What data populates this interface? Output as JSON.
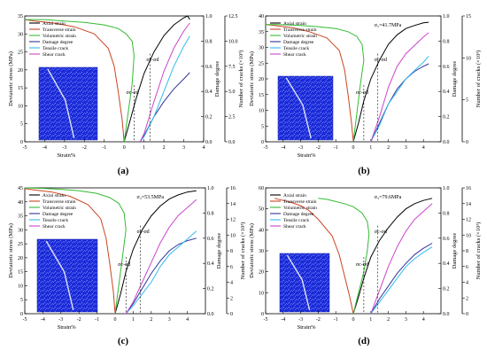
{
  "chart_data": [
    {
      "type": "line",
      "label": "(a)",
      "sigma3_label": "",
      "xlabel": "Strain%",
      "ylabel_left": "Deviatoric stress (MPa)",
      "ylabel_right1": "Damage degree",
      "ylabel_right2": "Number of cracks (×10³)",
      "xlim": [
        -5,
        4
      ],
      "xticks": [
        -5,
        -4,
        -3,
        -2,
        -1,
        0,
        1,
        2,
        3,
        4
      ],
      "ylim_left": [
        0,
        35
      ],
      "yticks_left": [
        0,
        5,
        10,
        15,
        20,
        25,
        30,
        35
      ],
      "ylim_damage": [
        0,
        1.0
      ],
      "yticks_damage": [
        0.0,
        0.2,
        0.4,
        0.6,
        0.8,
        1.0
      ],
      "ylim_cracks": [
        0,
        12.5
      ],
      "yticks_cracks": [
        0.0,
        2.5,
        5.0,
        7.5,
        10.0,
        12.5
      ],
      "annotations": [
        "σc-σd",
        "σc-σd"
      ],
      "legend_position": "top-left",
      "series": [
        {
          "name": "Axial strain",
          "color": "#000000",
          "axis": "left",
          "x": [
            0,
            0.3,
            0.6,
            1.0,
            1.5,
            2.0,
            2.5,
            3.0,
            3.2,
            3.3
          ],
          "y": [
            0,
            6,
            12,
            19,
            25,
            29.5,
            32.5,
            34.5,
            35,
            34
          ]
        },
        {
          "name": "Transverse strain",
          "color": "#cc4422",
          "axis": "left",
          "x": [
            0,
            -0.1,
            -0.3,
            -0.5,
            -0.8,
            -1.5,
            -2.5,
            -3.5,
            -4.5,
            -5
          ],
          "y": [
            0,
            6,
            14,
            21,
            26,
            30,
            32,
            33,
            33.6,
            34
          ]
        },
        {
          "name": "Volumetric strain",
          "color": "#33bb33",
          "axis": "left",
          "x": [
            0,
            0.2,
            0.4,
            0.5,
            0.4,
            0.1,
            -0.3,
            -1.0,
            -2.0,
            -3.0,
            -4.0,
            -5.0
          ],
          "y": [
            0,
            8,
            16,
            24,
            28,
            30,
            31.5,
            32.5,
            33.2,
            33.6,
            34,
            34
          ]
        },
        {
          "name": "Damage degree",
          "color": "#333399",
          "axis": "damage",
          "x": [
            0.8,
            1.0,
            1.5,
            2.0,
            2.5,
            3.0,
            3.3
          ],
          "y": [
            0,
            0.05,
            0.2,
            0.32,
            0.42,
            0.5,
            0.55
          ]
        },
        {
          "name": "Tensile crack",
          "color": "#33bbee",
          "axis": "cracks",
          "x": [
            0.8,
            1.0,
            1.5,
            2.0,
            2.5,
            3.0,
            3.3
          ],
          "y": [
            0,
            0.5,
            2.5,
            5.0,
            7.5,
            9.5,
            10.5
          ]
        },
        {
          "name": "Shear crack",
          "color": "#cc44cc",
          "axis": "cracks",
          "x": [
            0.8,
            1.0,
            1.5,
            2.0,
            2.5,
            3.0,
            3.3
          ],
          "y": [
            0,
            0.8,
            4.0,
            7.0,
            9.3,
            11.0,
            11.8
          ]
        }
      ]
    },
    {
      "type": "line",
      "label": "(b)",
      "sigma3_label": "σ₃=41.7MPa",
      "xlabel": "Strain%",
      "ylabel_left": "Deviatoric stress (MPa)",
      "ylabel_right1": "Damage degree",
      "ylabel_right2": "Number of cracks (×10³)",
      "xlim": [
        -5,
        5
      ],
      "xticks": [
        -5,
        -4,
        -3,
        -2,
        -1,
        0,
        1,
        2,
        3,
        4
      ],
      "ylim_left": [
        0,
        40
      ],
      "yticks_left": [
        0,
        5,
        10,
        15,
        20,
        25,
        30,
        35,
        40
      ],
      "ylim_damage": [
        0,
        1.0
      ],
      "yticks_damage": [
        0.0,
        0.2,
        0.4,
        0.6,
        0.8,
        1.0
      ],
      "ylim_cracks": [
        0,
        15
      ],
      "yticks_cracks": [
        0,
        5,
        10,
        15
      ],
      "annotations": [
        "σc-σd",
        "σc-σd"
      ],
      "legend_position": "top-left",
      "series": [
        {
          "name": "Axial strain",
          "color": "#000000",
          "axis": "left",
          "x": [
            0,
            0.3,
            0.6,
            1.0,
            1.5,
            2.0,
            2.5,
            3.0,
            3.5,
            4.0,
            4.3
          ],
          "y": [
            0,
            6,
            13,
            20,
            26,
            31,
            34,
            36,
            37,
            37.8,
            38
          ]
        },
        {
          "name": "Transverse strain",
          "color": "#cc4422",
          "axis": "left",
          "x": [
            0,
            -0.1,
            -0.3,
            -0.5,
            -0.8,
            -1.5,
            -2.5,
            -3.5,
            -4.5,
            -5
          ],
          "y": [
            0,
            6,
            15,
            23,
            29,
            33,
            35,
            36.3,
            37,
            37.3
          ]
        },
        {
          "name": "Volumetric strain",
          "color": "#33bb33",
          "axis": "left",
          "x": [
            0,
            0.2,
            0.4,
            0.6,
            0.5,
            0.2,
            -0.3,
            -1.0,
            -2.0,
            -3.0,
            -4.0,
            -5.0
          ],
          "y": [
            0,
            9,
            18,
            26,
            31,
            33.5,
            35,
            36,
            36.6,
            37,
            37.2,
            37.3
          ]
        },
        {
          "name": "Damage degree",
          "color": "#333399",
          "axis": "damage",
          "x": [
            1.0,
            1.5,
            2.0,
            2.5,
            3.0,
            3.5,
            4.0,
            4.3
          ],
          "y": [
            0,
            0.15,
            0.3,
            0.42,
            0.5,
            0.56,
            0.6,
            0.62
          ]
        },
        {
          "name": "Tensile crack",
          "color": "#33bbee",
          "axis": "cracks",
          "x": [
            1.0,
            1.5,
            2.0,
            2.5,
            3.0,
            3.5,
            4.0,
            4.3
          ],
          "y": [
            0,
            2.0,
            4.5,
            6.0,
            7.5,
            8.5,
            9.5,
            10.2
          ]
        },
        {
          "name": "Shear crack",
          "color": "#cc44cc",
          "axis": "cracks",
          "x": [
            1.0,
            1.5,
            2.0,
            2.5,
            3.0,
            3.5,
            4.0,
            4.3
          ],
          "y": [
            0,
            3.0,
            6.5,
            9.0,
            10.5,
            11.5,
            12.5,
            13.0
          ]
        }
      ]
    },
    {
      "type": "line",
      "label": "(c)",
      "sigma3_label": "σ₃=53.5MPa",
      "xlabel": "Strain%",
      "ylabel_left": "Deviatoric stress (MPa)",
      "ylabel_right1": "Damage degree",
      "ylabel_right2": "Number of cracks (×10³)",
      "xlim": [
        -5,
        5
      ],
      "xticks": [
        -5,
        -4,
        -3,
        -2,
        -1,
        0,
        1,
        2,
        3,
        4
      ],
      "ylim_left": [
        0,
        45
      ],
      "yticks_left": [
        0,
        5,
        10,
        15,
        20,
        25,
        30,
        35,
        40,
        45
      ],
      "ylim_damage": [
        0,
        1.0
      ],
      "yticks_damage": [
        0.0,
        0.2,
        0.4,
        0.6,
        0.8,
        1.0
      ],
      "ylim_cracks": [
        0,
        16
      ],
      "yticks_cracks": [
        0,
        2,
        4,
        6,
        8,
        10,
        12,
        14,
        16
      ],
      "annotations": [
        "σc-σd",
        "σc-σd"
      ],
      "legend_position": "top-left",
      "series": [
        {
          "name": "Axial strain",
          "color": "#000000",
          "axis": "left",
          "x": [
            0,
            0.3,
            0.6,
            1.0,
            1.5,
            2.0,
            2.5,
            3.0,
            3.5,
            4.0,
            4.5
          ],
          "y": [
            0,
            7,
            15,
            23,
            30,
            35,
            38.5,
            41,
            42.5,
            43.5,
            44
          ]
        },
        {
          "name": "Transverse strain",
          "color": "#cc4422",
          "axis": "left",
          "x": [
            0,
            -0.1,
            -0.3,
            -0.5,
            -0.8,
            -1.5,
            -2.5,
            -3.5,
            -4.5,
            -5
          ],
          "y": [
            0,
            8,
            18,
            27,
            34,
            39,
            42,
            43.5,
            44.3,
            44.7
          ]
        },
        {
          "name": "Volumetric strain",
          "color": "#33bb33",
          "axis": "left",
          "x": [
            0,
            0.2,
            0.4,
            0.6,
            0.5,
            0.2,
            -0.3,
            -1.0,
            -2.0,
            -3.0,
            -4.0,
            -5.0
          ],
          "y": [
            0,
            10,
            20,
            30,
            36,
            39.5,
            41.5,
            43,
            44,
            44.5,
            44.8,
            45
          ]
        },
        {
          "name": "Damage degree",
          "color": "#333399",
          "axis": "damage",
          "x": [
            0.6,
            1.0,
            1.5,
            2.0,
            2.5,
            3.0,
            3.5,
            4.0,
            4.5
          ],
          "y": [
            0,
            0.08,
            0.2,
            0.32,
            0.42,
            0.5,
            0.55,
            0.58,
            0.6
          ]
        },
        {
          "name": "Tensile crack",
          "color": "#33bbee",
          "axis": "cracks",
          "x": [
            0.6,
            1.0,
            1.5,
            2.0,
            2.5,
            3.0,
            3.5,
            4.0,
            4.5
          ],
          "y": [
            0,
            1.0,
            2.5,
            4.0,
            6.0,
            7.5,
            8.5,
            9.5,
            10.5
          ]
        },
        {
          "name": "Shear crack",
          "color": "#cc44cc",
          "axis": "cracks",
          "x": [
            0.6,
            1.0,
            1.5,
            2.0,
            2.5,
            3.0,
            3.5,
            4.0,
            4.5
          ],
          "y": [
            0,
            1.5,
            4.0,
            6.5,
            9.0,
            11.0,
            12.5,
            13.5,
            14.5
          ]
        }
      ]
    },
    {
      "type": "line",
      "label": "(d)",
      "sigma3_label": "σ₃=79.6MPa",
      "xlabel": "Strain%",
      "ylabel_left": "Deviatoric stress (MPa)",
      "ylabel_right1": "Damage degree",
      "ylabel_right2": "Number of cracks (×10³)",
      "xlim": [
        -5,
        5
      ],
      "xticks": [
        -5,
        -4,
        -3,
        -2,
        -1,
        0,
        1,
        2,
        3,
        4
      ],
      "ylim_left": [
        0,
        60
      ],
      "yticks_left": [
        0,
        10,
        20,
        30,
        40,
        50,
        60
      ],
      "ylim_damage": [
        0,
        1.0
      ],
      "yticks_damage": [
        0.0,
        0.2,
        0.4,
        0.6,
        0.8,
        1.0
      ],
      "ylim_cracks": [
        0,
        16
      ],
      "yticks_cracks": [
        0,
        2,
        4,
        6,
        8,
        10,
        12,
        14,
        16
      ],
      "annotations": [
        "σc-σd",
        "σc-σd"
      ],
      "legend_position": "top-left",
      "series": [
        {
          "name": "Axial strain",
          "color": "#000000",
          "axis": "left",
          "x": [
            0,
            0.3,
            0.6,
            1.0,
            1.5,
            2.0,
            2.5,
            3.0,
            3.5,
            4.0,
            4.5
          ],
          "y": [
            0,
            8,
            17,
            27,
            35,
            41,
            46,
            50,
            52.5,
            54,
            55
          ]
        },
        {
          "name": "Transverse strain",
          "color": "#cc4422",
          "axis": "left",
          "x": [
            0,
            -0.2,
            -0.5,
            -0.8,
            -1.2,
            -2.0,
            -2.5,
            -3.0,
            -3.5,
            -4.0,
            -4.5
          ],
          "y": [
            0,
            8,
            18,
            28,
            37,
            45,
            49,
            51.5,
            53,
            54,
            55
          ]
        },
        {
          "name": "Volumetric strain",
          "color": "#33bb33",
          "axis": "left",
          "x": [
            0,
            0.3,
            0.6,
            0.8,
            0.9,
            0.8,
            0.5,
            0,
            -0.5,
            -1.0,
            -1.5,
            -2.0
          ],
          "y": [
            0,
            10,
            20,
            30,
            38,
            44,
            48,
            51,
            52.5,
            53.5,
            54.5,
            55
          ]
        },
        {
          "name": "Damage degree",
          "color": "#333399",
          "axis": "damage",
          "x": [
            1.0,
            1.5,
            2.0,
            2.5,
            3.0,
            3.5,
            4.0,
            4.5
          ],
          "y": [
            0,
            0.12,
            0.22,
            0.32,
            0.4,
            0.47,
            0.52,
            0.56
          ]
        },
        {
          "name": "Tensile crack",
          "color": "#33bbee",
          "axis": "cracks",
          "x": [
            1.0,
            1.5,
            2.0,
            2.5,
            3.0,
            3.5,
            4.0,
            4.5
          ],
          "y": [
            0,
            1.5,
            3.0,
            4.5,
            6.0,
            7.0,
            7.8,
            8.5
          ]
        },
        {
          "name": "Shear crack",
          "color": "#cc44cc",
          "axis": "cracks",
          "x": [
            1.0,
            1.5,
            2.0,
            2.5,
            3.0,
            3.5,
            4.0,
            4.5
          ],
          "y": [
            0,
            3.0,
            6.0,
            8.5,
            10.5,
            12.0,
            13.0,
            14.0
          ]
        }
      ]
    }
  ]
}
